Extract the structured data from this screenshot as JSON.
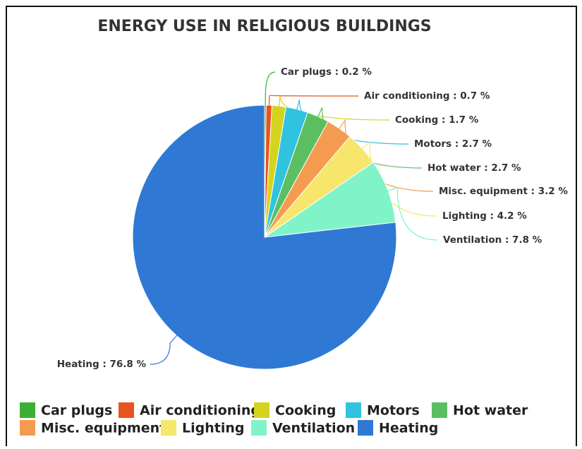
{
  "chart_data": {
    "type": "pie",
    "title": "ENERGY USE IN RELIGIOUS BUILDINGS",
    "categories": [
      "Car plugs",
      "Air conditioning",
      "Cooking",
      "Motors",
      "Hot water",
      "Misc. equipment",
      "Lighting",
      "Ventilation",
      "Heating"
    ],
    "values": [
      0.2,
      0.7,
      1.7,
      2.7,
      2.7,
      3.2,
      4.2,
      7.8,
      76.8
    ],
    "value_labels": [
      "Car plugs : 0.2 %",
      "Air conditioning : 0.7 %",
      "Cooking : 1.7 %",
      "Motors : 2.7 %",
      "Hot water : 2.7 %",
      "Misc. equipment : 3.2 %",
      "Lighting : 4.2 %",
      "Ventilation : 7.8 %",
      "Heating : 76.8 %"
    ],
    "colors": [
      "#3daf35",
      "#e8531f",
      "#d4d41f",
      "#2fc3df",
      "#5bbf62",
      "#f59b50",
      "#f6e66b",
      "#80f4c8",
      "#2f79d5"
    ],
    "legend": "bottom"
  }
}
